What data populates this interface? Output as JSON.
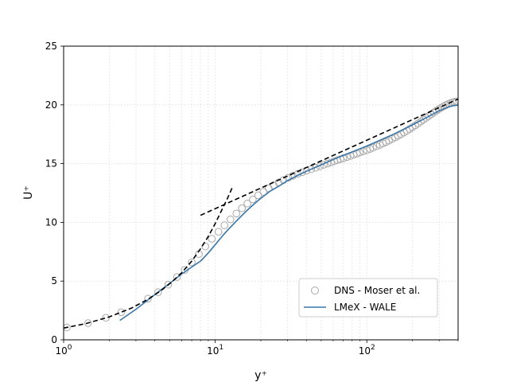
{
  "chart_data": {
    "type": "line",
    "xscale": "log",
    "xlim": [
      1,
      400
    ],
    "ylim": [
      0,
      25
    ],
    "xlabel": "y⁺",
    "ylabel": "U⁺",
    "grid": true,
    "legend_position": "lower-right",
    "x_ticks": [
      {
        "value": 1,
        "base": "10",
        "exp": "0"
      },
      {
        "value": 10,
        "base": "10",
        "exp": "1"
      },
      {
        "value": 100,
        "base": "10",
        "exp": "2"
      }
    ],
    "y_ticks": [
      "0",
      "5",
      "10",
      "15",
      "20",
      "25"
    ],
    "series": [
      {
        "name": "DNS - Moser et al.",
        "kind": "markers",
        "color": "#a8a8a8",
        "x": [
          1.05,
          1.45,
          1.9,
          2.4,
          3.6,
          4.2,
          4.9,
          5.6,
          6.3,
          7.0,
          7.8,
          8.6,
          9.5,
          10.5,
          11.5,
          12.6,
          13.8,
          15.0,
          16.3,
          17.7,
          19.2,
          20.8,
          22.5,
          24.3,
          26.2,
          28.2,
          30.3,
          32.5,
          35,
          37.5,
          40,
          43,
          46,
          49,
          52,
          55,
          58,
          61,
          64,
          67,
          70,
          74,
          78,
          82,
          86,
          90,
          95,
          100,
          105,
          110,
          116,
          122,
          128,
          134,
          140,
          147,
          154,
          161,
          168,
          176,
          184,
          192,
          200,
          209,
          218,
          227,
          236,
          246,
          256,
          266,
          276,
          287,
          298,
          309,
          320,
          332,
          344,
          356,
          368,
          380,
          392
        ],
        "y": [
          1.05,
          1.42,
          1.88,
          2.35,
          3.5,
          4.05,
          4.7,
          5.35,
          5.95,
          6.6,
          7.3,
          7.95,
          8.6,
          9.2,
          9.75,
          10.25,
          10.75,
          11.2,
          11.6,
          11.95,
          12.3,
          12.6,
          12.9,
          13.15,
          13.4,
          13.6,
          13.8,
          13.97,
          14.13,
          14.27,
          14.4,
          14.53,
          14.65,
          14.78,
          14.9,
          15.0,
          15.1,
          15.2,
          15.3,
          15.38,
          15.46,
          15.56,
          15.66,
          15.76,
          15.85,
          15.94,
          16.05,
          16.15,
          16.25,
          16.36,
          16.48,
          16.6,
          16.72,
          16.84,
          16.96,
          17.1,
          17.23,
          17.37,
          17.5,
          17.65,
          17.8,
          17.95,
          18.1,
          18.26,
          18.42,
          18.58,
          18.74,
          18.9,
          19.05,
          19.2,
          19.35,
          19.5,
          19.63,
          19.75,
          19.87,
          19.98,
          20.07,
          20.15,
          20.22,
          20.27,
          20.3
        ]
      },
      {
        "name": "LMeX - WALE",
        "kind": "line",
        "color": "#3a76a8",
        "x": [
          2.35,
          3,
          4,
          5,
          6,
          7,
          8,
          9,
          10,
          11,
          12,
          14,
          16,
          18,
          20,
          23,
          26,
          30,
          35,
          40,
          50,
          60,
          70,
          80,
          100,
          120,
          150,
          180,
          200,
          250,
          300,
          350,
          380,
          400
        ],
        "y": [
          1.65,
          2.6,
          3.85,
          4.8,
          5.6,
          6.2,
          6.7,
          7.4,
          8.1,
          8.75,
          9.3,
          10.2,
          10.95,
          11.55,
          12.05,
          12.65,
          13.05,
          13.55,
          14.0,
          14.35,
          14.9,
          15.35,
          15.7,
          16.0,
          16.5,
          16.95,
          17.5,
          18.0,
          18.3,
          18.95,
          19.5,
          19.85,
          19.95,
          19.97
        ]
      },
      {
        "kind": "dashed",
        "color": "#000000",
        "x": [
          1.0,
          1.4,
          2.0,
          2.8,
          3.6,
          4.4,
          5.2,
          6.0,
          7.0,
          8.0,
          9.0,
          10.0,
          11.0,
          12.0,
          13.0
        ],
        "y": [
          1.0,
          1.38,
          1.95,
          2.7,
          3.45,
          4.2,
          4.95,
          5.7,
          6.7,
          7.75,
          8.8,
          9.9,
          11.0,
          12.0,
          13.0
        ]
      },
      {
        "kind": "dashed",
        "color": "#000000",
        "x": [
          8,
          400
        ],
        "y": [
          10.6,
          20.5
        ]
      }
    ]
  }
}
